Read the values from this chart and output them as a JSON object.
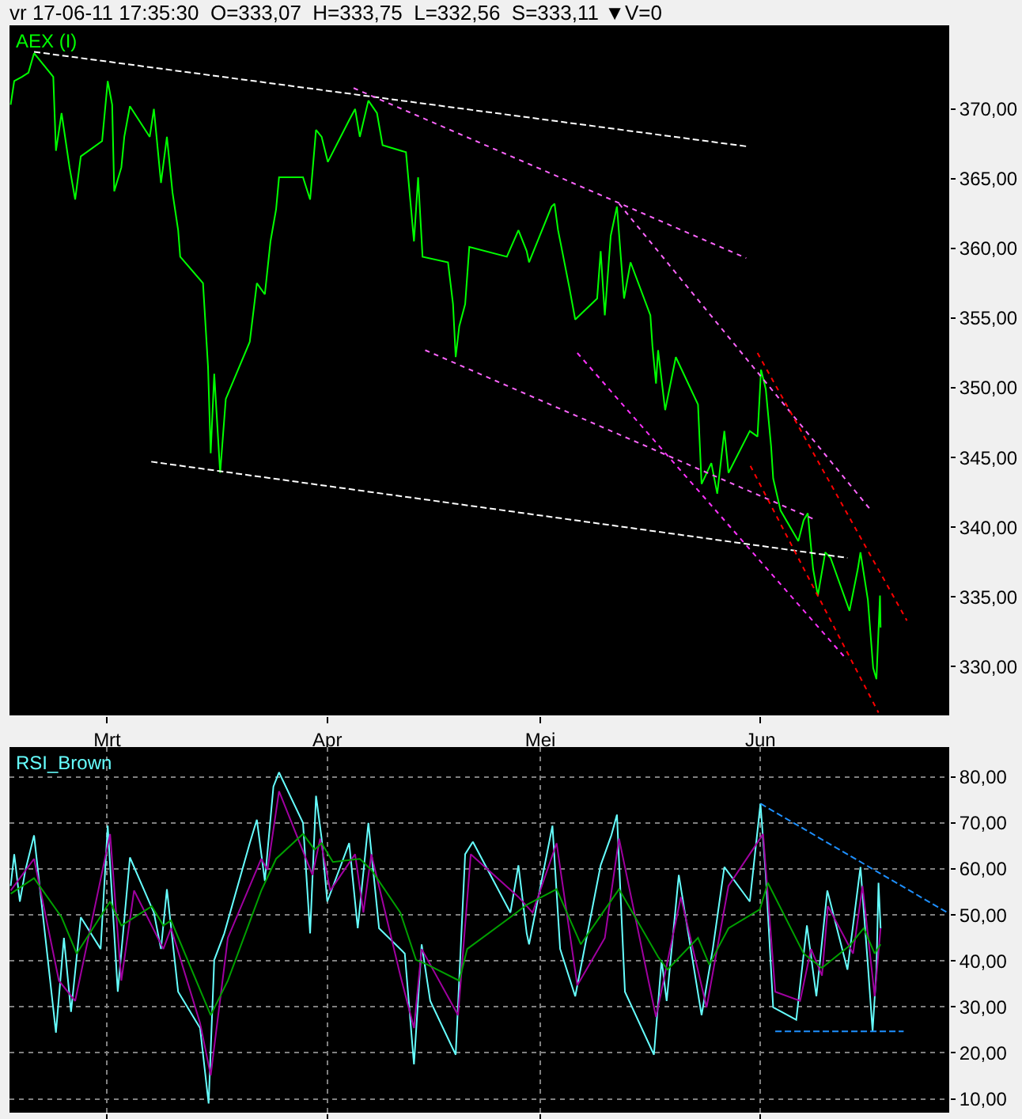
{
  "chart_data": [
    {
      "type": "line",
      "title": "vr 17-06-11 17:35:30  O=333,07  H=333,75  L=332,56  S=333,11 ▼V=0",
      "xlim": [
        "--02-15T06:00",
        "--06-27T14:00"
      ],
      "xticks": [
        {
          "value": "--03-01",
          "label": "Mrt"
        },
        {
          "value": "--04-01",
          "label": "Apr"
        },
        {
          "value": "--05-01",
          "label": "Mei"
        },
        {
          "value": "--06-01",
          "label": "Jun"
        }
      ],
      "ylim": [
        326.5,
        376
      ],
      "yticks": [
        {
          "value": 330,
          "label": "330,00"
        },
        {
          "value": 335,
          "label": "335,00"
        },
        {
          "value": 340,
          "label": "340,00"
        },
        {
          "value": 345,
          "label": "345,00"
        },
        {
          "value": 350,
          "label": "350,00"
        },
        {
          "value": 355,
          "label": "355,00"
        },
        {
          "value": 360,
          "label": "360,00"
        },
        {
          "value": 365,
          "label": "365,00"
        },
        {
          "value": 370,
          "label": "370,00"
        }
      ],
      "grid": false,
      "legend": false,
      "series": [
        {
          "name": "AEX (I)",
          "color": "#00ff00",
          "line_style": "solid",
          "x": [
            "--02-15T10:00",
            "--02-15T22:00",
            "--02-17T00:00",
            "--02-17T22:00",
            "--02-18T17:00",
            "--02-21T10:00",
            "--02-21T19:00",
            "--02-22T14:00",
            "--02-23T17:00",
            "--02-24T12:00",
            "--02-25T07:00",
            "--02-28T07:00",
            "--03-01T02:00",
            "--03-01T17:00",
            "--03-02T00:00",
            "--03-03T00:00",
            "--03-03T10:00",
            "--03-04T05:00",
            "--03-07T00:00",
            "--03-07T14:00",
            "--03-08T14:00",
            "--03-09T10:00",
            "--03-10T05:00",
            "--03-11T00:00",
            "--03-11T07:00",
            "--03-14T12:00",
            "--03-15T05:00",
            "--03-15T14:00",
            "--03-16T02:00",
            "--03-16T22:00",
            "--03-17T17:00",
            "--03-21T02:00",
            "--03-22T02:00",
            "--03-23T05:00",
            "--03-24T00:00",
            "--03-24T19:00",
            "--03-25T05:00",
            "--03-28T14:00",
            "--03-29T14:00",
            "--03-30T10:00",
            "--03-31T05:00",
            "--04-01T02:00",
            "--04-04T02:00",
            "--04-04T22:00",
            "--04-05T14:00",
            "--04-06T19:00",
            "--04-08T00:00",
            "--04-08T19:00",
            "--04-12T02:00",
            "--04-13T05:00",
            "--04-13T19:00",
            "--04-14T10:00",
            "--04-18T00:00",
            "--04-18T17:00",
            "--04-19T02:00",
            "--04-19T14:00",
            "--04-20T10:00",
            "--04-21T00:00",
            "--04-26T07:00",
            "--04-27T22:00",
            "--04-29T02:00",
            "--04-29T10:00",
            "--05-02T14:00",
            "--05-03T00:00",
            "--05-03T12:00",
            "--05-05T02:00",
            "--05-05T22:00",
            "--05-09T00:00",
            "--05-09T12:00",
            "--05-10T02:00",
            "--05-10T22:00",
            "--05-11T19:00",
            "--05-12T19:00",
            "--05-13T17:00",
            "--05-16T12:00",
            "--05-16T19:00",
            "--05-17T07:00",
            "--05-17T14:00",
            "--05-18T14:00",
            "--05-20T02:00",
            "--05-23T05:00",
            "--05-23T17:00",
            "--05-25T02:00",
            "--05-25T22:00",
            "--05-26T22:00",
            "--05-27T12:00",
            "--05-30T12:00",
            "--05-31T14:00",
            "--06-01T02:00",
            "--06-01T18:00",
            "--06-02T12:00",
            "--06-02T19:00",
            "--06-03T20:00",
            "--06-06T08:00",
            "--06-07T02:00",
            "--06-07T16:00",
            "--06-08T10:00",
            "--06-09T02:00",
            "--06-10T03:00",
            "--06-10T21:00",
            "--06-13T13:00",
            "--06-14T17:00",
            "--06-15T02:00",
            "--06-16T03:00",
            "--06-16T21:00",
            "--06-17T08:00",
            "--06-17T20:00",
            "--06-17T22:00"
          ],
          "values": [
            370.3,
            372,
            372.3,
            372.6,
            374,
            372.3,
            367,
            369.7,
            365.8,
            363.5,
            366.6,
            367.7,
            372,
            370.3,
            364.1,
            365.8,
            368,
            370.2,
            368,
            370,
            364.7,
            368,
            364,
            361.3,
            359.4,
            357.5,
            351.5,
            345.3,
            351,
            343.9,
            349.2,
            353.3,
            357.5,
            356.7,
            360.5,
            362.8,
            365.1,
            365.1,
            363.5,
            368.5,
            368,
            366.2,
            369.2,
            370,
            368,
            370.6,
            369.7,
            367.4,
            366.9,
            360.5,
            365.1,
            359.4,
            359,
            356,
            352.2,
            354.4,
            356,
            360.1,
            359.4,
            361.3,
            359.8,
            359,
            363,
            363.2,
            361.3,
            357.2,
            354.9,
            356.4,
            359.8,
            355.2,
            360.9,
            363,
            356.4,
            359,
            355.2,
            353,
            350.3,
            352.7,
            348.4,
            352.2,
            348.8,
            343.1,
            344.6,
            342.4,
            346.9,
            343.9,
            346.9,
            346.5,
            351.3,
            349.9,
            345.8,
            343.5,
            341.2,
            339,
            340.5,
            341,
            337,
            335.1,
            338.2,
            337.8,
            334,
            337,
            338.2,
            334.8,
            329.9,
            329.1,
            335.1,
            332.8
          ]
        },
        {
          "color": "#ffffff",
          "line_style": "dashed",
          "x": [
            "--02-18T17:00",
            "--05-30T07:00"
          ],
          "values": [
            374.1,
            367.3
          ]
        },
        {
          "color": "#ffffff",
          "line_style": "dashed",
          "x": [
            "--03-07T05:00",
            "--06-13T06:00"
          ],
          "values": [
            344.7,
            337.8
          ]
        },
        {
          "color": "#ff66ff",
          "line_style": "dotted",
          "x": [
            "--04-04T17:00",
            "--05-30T00:00"
          ],
          "values": [
            371.5,
            359.3
          ]
        },
        {
          "color": "#ff66ff",
          "line_style": "dotted",
          "x": [
            "--05-12T02:00",
            "--06-16T14:00"
          ],
          "values": [
            363.2,
            341.2
          ]
        },
        {
          "color": "#ff66ff",
          "line_style": "dotted",
          "x": [
            "--04-14T19:00",
            "--06-08T21:00"
          ],
          "values": [
            352.7,
            340.5
          ]
        },
        {
          "color": "#ff33ff",
          "line_style": "dotted",
          "x": [
            "--05-06T05:00",
            "--06-13T04:00"
          ],
          "values": [
            352.5,
            330.5
          ]
        },
        {
          "color": "#ff0000",
          "line_style": "dotted",
          "x": [
            "--05-31T14:00",
            "--06-21T15:00"
          ],
          "values": [
            352.5,
            333.3
          ]
        },
        {
          "color": "#ff0000",
          "line_style": "dotted",
          "x": [
            "--05-30T14:00",
            "--06-17T15:00"
          ],
          "values": [
            344.4,
            326.7
          ]
        }
      ]
    },
    {
      "type": "line",
      "tick_labels": "y",
      "xlim": [
        "--02-15T06:00",
        "--06-27T14:00"
      ],
      "xticks": [
        {
          "value": "--03-01",
          "label": "Mrt"
        },
        {
          "value": "--04-01",
          "label": "Apr"
        },
        {
          "value": "--05-01",
          "label": "Mei"
        },
        {
          "value": "--06-01",
          "label": "Jun"
        }
      ],
      "ylim": [
        7,
        86.5
      ],
      "yticks": [
        {
          "value": 10,
          "label": "10,00"
        },
        {
          "value": 20,
          "label": "20,00"
        },
        {
          "value": 30,
          "label": "30,00"
        },
        {
          "value": 40,
          "label": "40,00"
        },
        {
          "value": 50,
          "label": "50,00"
        },
        {
          "value": 60,
          "label": "60,00"
        },
        {
          "value": 70,
          "label": "70,00"
        },
        {
          "value": 80,
          "label": "80,00"
        }
      ],
      "grid": true,
      "legend": false,
      "series": [
        {
          "name": "RSI_Brown",
          "color": "#66ffff",
          "line_style": "solid",
          "x": [
            "--02-15T10:00",
            "--02-15T22:00",
            "--02-16T17:00",
            "--02-17T12:00",
            "--02-18T17:00",
            "--02-21T19:00",
            "--02-22T22:00",
            "--02-23T22:00",
            "--02-25T07:00",
            "--02-28T02:00",
            "--03-01T02:00",
            "--03-02T12:00",
            "--03-04T05:00",
            "--03-07T14:00",
            "--03-08T14:00",
            "--03-09T10:00",
            "--03-11T00:00",
            "--03-14T02:00",
            "--03-15T07:00",
            "--03-16T02:00",
            "--03-17T12:00",
            "--03-21T02:00",
            "--03-22T02:00",
            "--03-23T05:00",
            "--03-24T10:00",
            "--03-25T05:00",
            "--03-28T14:00",
            "--03-29T14:00",
            "--03-30T10:00",
            "--03-31T05:00",
            "--04-01T00:00",
            "--04-04T02:00",
            "--04-05T07:00",
            "--04-06T19:00",
            "--04-08T07:00",
            "--04-11T22:00",
            "--04-13T05:00",
            "--04-14T07:00",
            "--04-15T12:00",
            "--04-19T02:00",
            "--04-20T10:00",
            "--04-21T12:00",
            "--04-26T19:00",
            "--04-27T22:00",
            "--04-29T02:00",
            "--04-29T10:00",
            "--05-02T17:00",
            "--05-03T19:00",
            "--05-05T22:00",
            "--05-09T12:00",
            "--05-11T00:00",
            "--05-11T19:00",
            "--05-12T22:00",
            "--05-17T00:00",
            "--05-18T02:00",
            "--05-18T19:00",
            "--05-20T12:00",
            "--05-23T17:00",
            "--05-25T07:00",
            "--05-26T22:00",
            "--05-30T12:00",
            "--06-01T00:00",
            "--06-01T18:00",
            "--06-02T19:00",
            "--06-06T01:00",
            "--06-07T13:00",
            "--06-08T21:00",
            "--06-10T10:00",
            "--06-13T06:00",
            "--06-15T02:00",
            "--06-16T03:00",
            "--06-16T19:00",
            "--06-17T08:00",
            "--06-17T15:00",
            "--06-17T22:00"
          ],
          "values": [
            56.3,
            63.2,
            52.9,
            59.8,
            67.3,
            24.4,
            45.0,
            28.9,
            49.5,
            42.6,
            69.4,
            33.3,
            62.5,
            50.5,
            42.6,
            55.6,
            33.3,
            25.4,
            9.0,
            40.2,
            46.0,
            65.6,
            70.7,
            57.4,
            77.9,
            81.0,
            70.0,
            46.0,
            75.9,
            66.6,
            52.9,
            65.6,
            47.1,
            70.0,
            47.1,
            41.6,
            17.5,
            43.6,
            31.3,
            19.6,
            63.2,
            65.9,
            50.5,
            60.8,
            46.0,
            43.6,
            69.4,
            42.6,
            32.3,
            60.8,
            67.3,
            71.8,
            33.3,
            19.6,
            40.2,
            31.3,
            58.7,
            28.2,
            42.6,
            60.4,
            52.9,
            74.2,
            58.7,
            29.9,
            27.2,
            47.7,
            32.3,
            55.3,
            38.1,
            60.4,
            39.2,
            24.7,
            38.1,
            57.0,
            47.1
          ]
        },
        {
          "color": "#a000a0",
          "line_style": "solid",
          "x": [
            "--02-15T10:00",
            "--02-18T17:00",
            "--02-22T05:00",
            "--02-24T12:00",
            "--03-01T10:00",
            "--03-03T00:00",
            "--03-04T19:00",
            "--03-08T22:00",
            "--03-10T00:00",
            "--03-14T02:00",
            "--03-15T14:00",
            "--03-18T00:00",
            "--03-22T17:00",
            "--03-23T14:00",
            "--03-25T05:00",
            "--03-29T22:00",
            "--03-31T00:00",
            "--04-01T10:00",
            "--04-04T22:00",
            "--04-06T02:00",
            "--04-07T05:00",
            "--04-11T07:00",
            "--04-13T05:00",
            "--04-14T07:00",
            "--04-19T10:00",
            "--04-21T05:00",
            "--04-27T22:00",
            "--04-29T22:00",
            "--05-03T07:00",
            "--05-06T05:00",
            "--05-10T02:00",
            "--05-12T02:00",
            "--05-17T07:00",
            "--05-20T19:00",
            "--05-24T10:00",
            "--05-27T12:00",
            "--06-01T09:00",
            "--06-03T02:00",
            "--06-06T14:00",
            "--06-08T03:00",
            "--06-09T16:00",
            "--06-10T12:00",
            "--06-14T01:00",
            "--06-15T09:00",
            "--06-17T02:00",
            "--06-17T22:00"
          ],
          "values": [
            55.3,
            62.2,
            35.7,
            31.3,
            67.6,
            35.7,
            55.3,
            42.6,
            47.1,
            26.5,
            15.1,
            45.0,
            62.2,
            59.8,
            76.9,
            58.7,
            66.6,
            55.3,
            63.2,
            50.5,
            63.2,
            36.8,
            25.4,
            42.6,
            28.2,
            63.2,
            53.9,
            50.5,
            65.6,
            34.7,
            45.0,
            66.6,
            27.8,
            53.9,
            29.9,
            56.3,
            67.6,
            33.3,
            31.3,
            42.6,
            36.8,
            51.9,
            41.6,
            56.3,
            32.3,
            47.1
          ]
        },
        {
          "color": "#00a000",
          "line_style": "solid",
          "x": [
            "--02-15T10:00",
            "--02-18T17:00",
            "--02-22T14:00",
            "--02-24T17:00",
            "--03-01T10:00",
            "--03-03T00:00",
            "--03-07T07:00",
            "--03-08T22:00",
            "--03-10T00:00",
            "--03-15T14:00",
            "--03-18T00:00",
            "--03-22T17:00",
            "--03-24T19:00",
            "--03-28T14:00",
            "--03-30T05:00",
            "--03-31T05:00",
            "--04-01T19:00",
            "--04-05T14:00",
            "--04-07T05:00",
            "--04-11T07:00",
            "--04-13T12:00",
            "--04-15T02:00",
            "--04-19T14:00",
            "--04-20T17:00",
            "--04-26T19:00",
            "--04-29T02:00",
            "--05-03T07:00",
            "--05-06T17:00",
            "--05-12T02:00",
            "--05-17T14:00",
            "--05-18T22:00",
            "--05-23T05:00",
            "--05-24T19:00",
            "--05-27T12:00",
            "--05-31T22:00",
            "--06-02T01:00",
            "--06-07T02:00",
            "--06-09T16:00",
            "--06-13T13:00",
            "--06-15T13:00",
            "--06-17T02:00",
            "--06-17T22:00"
          ],
          "values": [
            54.6,
            58.0,
            49.5,
            41.6,
            52.9,
            47.7,
            51.9,
            47.7,
            48.8,
            28.2,
            35.7,
            55.3,
            62.2,
            67.6,
            64.2,
            65.6,
            61.5,
            62.2,
            59.8,
            50.5,
            40.2,
            39.2,
            35.7,
            42.6,
            49.5,
            52.2,
            55.6,
            43.6,
            55.6,
            40.9,
            38.1,
            45.0,
            39.2,
            47.1,
            51.2,
            57.0,
            41.6,
            38.5,
            43.3,
            47.1,
            41.6,
            43.6
          ]
        },
        {
          "color": "#1e90ff",
          "line_style": "dashed",
          "x": [
            "--06-01T00:00",
            "--06-27T08:00"
          ],
          "values": [
            74.2,
            50.5
          ]
        },
        {
          "color": "#1e90ff",
          "line_style": "dashed",
          "x": [
            "--06-03T02:00",
            "--06-21T04:00"
          ],
          "values": [
            24.7,
            24.7
          ]
        }
      ]
    }
  ]
}
